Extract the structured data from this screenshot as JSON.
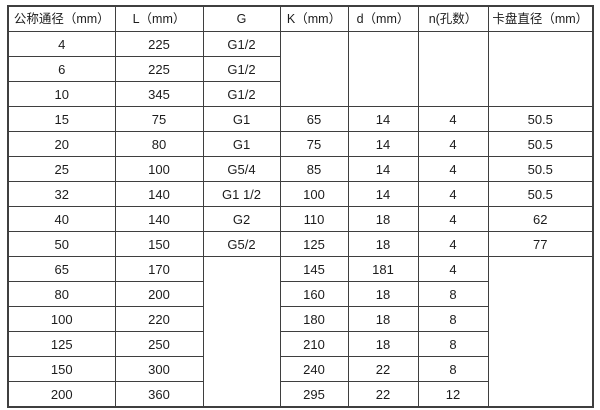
{
  "colors": {
    "border": "#3f3f3f",
    "text": "#1c1c1c",
    "background": "#ffffff"
  },
  "table": {
    "headers": [
      "公称通径（mm）",
      "L（mm）",
      "G",
      "K（mm）",
      "d（mm）",
      "n(孔数）",
      "卡盘直径（mm）"
    ],
    "rows": [
      [
        "4",
        "225",
        "G1/2"
      ],
      [
        "6",
        "225",
        "G1/2"
      ],
      [
        "10",
        "345",
        "G1/2"
      ],
      [
        "15",
        "75",
        "G1",
        "65",
        "14",
        "4",
        "50.5"
      ],
      [
        "20",
        "80",
        "G1",
        "75",
        "14",
        "4",
        "50.5"
      ],
      [
        "25",
        "100",
        "G5/4",
        "85",
        "14",
        "4",
        "50.5"
      ],
      [
        "32",
        "140",
        "G1 1/2",
        "100",
        "14",
        "4",
        "50.5"
      ],
      [
        "40",
        "140",
        "G2",
        "110",
        "18",
        "4",
        "62"
      ],
      [
        "50",
        "150",
        "G5/2",
        "125",
        "18",
        "4",
        "77"
      ],
      [
        "65",
        "170",
        "145",
        "181",
        "4"
      ],
      [
        "80",
        "200",
        "160",
        "18",
        "8"
      ],
      [
        "100",
        "220",
        "180",
        "18",
        "8"
      ],
      [
        "125",
        "250",
        "210",
        "18",
        "8"
      ],
      [
        "150",
        "300",
        "240",
        "22",
        "8"
      ],
      [
        "200",
        "360",
        "295",
        "22",
        "12"
      ]
    ]
  }
}
